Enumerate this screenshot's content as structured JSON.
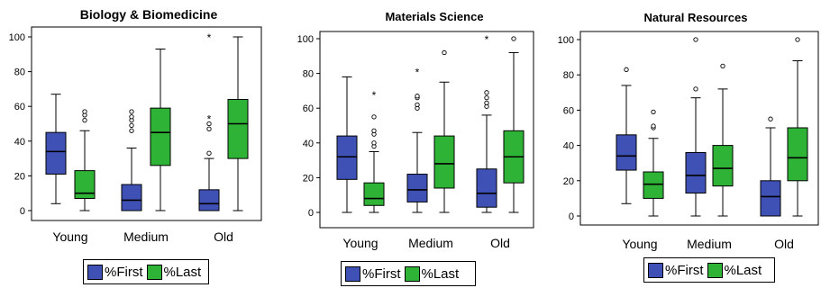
{
  "chart_data": [
    {
      "type": "box",
      "title": "Biology & Biomedicine",
      "categories": [
        "Young",
        "Medium",
        "Old"
      ],
      "ylim": [
        0,
        100
      ],
      "yticks": [
        0,
        20,
        40,
        60,
        80,
        100
      ],
      "legend_position": "bottom",
      "series": [
        {
          "name": "%First",
          "color": "#3f51b5",
          "boxes": [
            {
              "whislo": 4,
              "q1": 21,
              "med": 34,
              "q3": 45,
              "whishi": 67,
              "outliers": [],
              "extremes": []
            },
            {
              "whislo": 0,
              "q1": 0,
              "med": 6,
              "q3": 15,
              "whishi": 36,
              "outliers": [
                46,
                49,
                52,
                54,
                57
              ],
              "extremes": []
            },
            {
              "whislo": 0,
              "q1": 0,
              "med": 4,
              "q3": 12,
              "whishi": 30,
              "outliers": [
                33,
                47,
                50
              ],
              "extremes": [
                53,
                100
              ]
            }
          ]
        },
        {
          "name": "%Last",
          "color": "#2fb336",
          "boxes": [
            {
              "whislo": 0,
              "q1": 7,
              "med": 10,
              "q3": 23,
              "whishi": 46,
              "outliers": [
                52,
                55,
                57
              ],
              "extremes": []
            },
            {
              "whislo": 0,
              "q1": 26,
              "med": 45,
              "q3": 59,
              "whishi": 93,
              "outliers": [],
              "extremes": []
            },
            {
              "whislo": 0,
              "q1": 30,
              "med": 50,
              "q3": 64,
              "whishi": 100,
              "outliers": [],
              "extremes": []
            }
          ]
        }
      ]
    },
    {
      "type": "box",
      "title": "Materials Science",
      "categories": [
        "Young",
        "Medium",
        "Old"
      ],
      "ylim": [
        0,
        100
      ],
      "yticks": [
        0,
        20,
        40,
        60,
        80,
        100
      ],
      "legend_position": "bottom",
      "series": [
        {
          "name": "%First",
          "color": "#3f51b5",
          "boxes": [
            {
              "whislo": 0,
              "q1": 19,
              "med": 32,
              "q3": 44,
              "whishi": 78,
              "outliers": [],
              "extremes": []
            },
            {
              "whislo": 0,
              "q1": 6,
              "med": 13,
              "q3": 22,
              "whishi": 46,
              "outliers": [
                60,
                62,
                66,
                67
              ],
              "extremes": [
                81
              ]
            },
            {
              "whislo": 0,
              "q1": 3,
              "med": 11,
              "q3": 25,
              "whishi": 56,
              "outliers": [
                61,
                63,
                66,
                69
              ],
              "extremes": [
                100
              ]
            }
          ]
        },
        {
          "name": "%Last",
          "color": "#2fb336",
          "boxes": [
            {
              "whislo": 0,
              "q1": 4,
              "med": 8,
              "q3": 17,
              "whishi": 35,
              "outliers": [
                38,
                40,
                45,
                47,
                55
              ],
              "extremes": [
                68
              ]
            },
            {
              "whislo": 0,
              "q1": 14,
              "med": 28,
              "q3": 44,
              "whishi": 75,
              "outliers": [
                92
              ],
              "extremes": []
            },
            {
              "whislo": 0,
              "q1": 17,
              "med": 32,
              "q3": 47,
              "whishi": 92,
              "outliers": [
                100
              ],
              "extremes": []
            }
          ]
        }
      ]
    },
    {
      "type": "box",
      "title": "Natural Resources",
      "categories": [
        "Young",
        "Medium",
        "Old"
      ],
      "ylim": [
        0,
        100
      ],
      "yticks": [
        0,
        20,
        40,
        60,
        80,
        100
      ],
      "legend_position": "bottom",
      "series": [
        {
          "name": "%First",
          "color": "#3f51b5",
          "boxes": [
            {
              "whislo": 7,
              "q1": 26,
              "med": 34,
              "q3": 46,
              "whishi": 74,
              "outliers": [
                83
              ],
              "extremes": []
            },
            {
              "whislo": 0,
              "q1": 13,
              "med": 23,
              "q3": 36,
              "whishi": 67,
              "outliers": [
                72,
                100
              ],
              "extremes": []
            },
            {
              "whislo": 0,
              "q1": 0,
              "med": 11,
              "q3": 20,
              "whishi": 50,
              "outliers": [
                55
              ],
              "extremes": []
            }
          ]
        },
        {
          "name": "%Last",
          "color": "#2fb336",
          "boxes": [
            {
              "whislo": 0,
              "q1": 10,
              "med": 18,
              "q3": 25,
              "whishi": 44,
              "outliers": [
                50,
                51,
                59
              ],
              "extremes": []
            },
            {
              "whislo": 0,
              "q1": 17,
              "med": 27,
              "q3": 40,
              "whishi": 72,
              "outliers": [
                85
              ],
              "extremes": []
            },
            {
              "whislo": 0,
              "q1": 20,
              "med": 33,
              "q3": 50,
              "whishi": 88,
              "outliers": [
                100
              ],
              "extremes": []
            }
          ]
        }
      ]
    }
  ]
}
